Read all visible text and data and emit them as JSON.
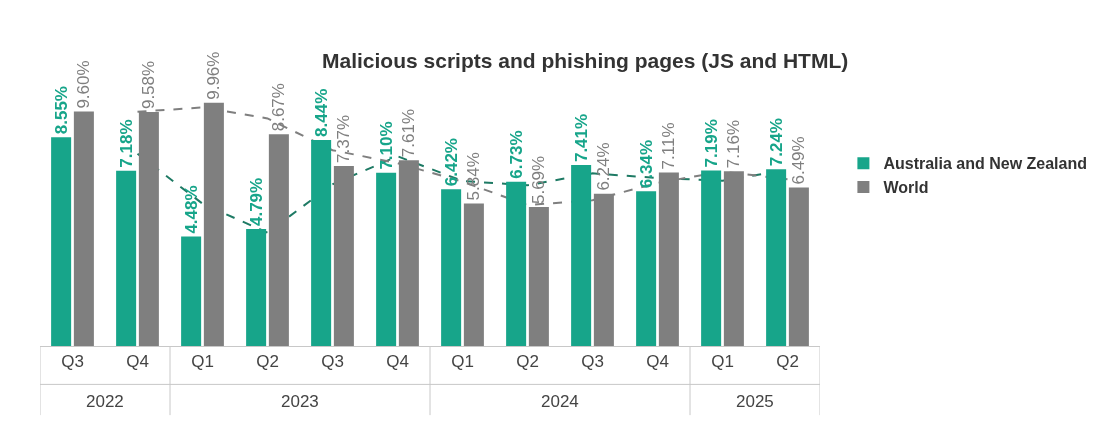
{
  "chart_data": {
    "type": "bar",
    "title": "Malicious scripts and phishing pages (JS and HTML)",
    "categories": [
      "Q3",
      "Q4",
      "Q1",
      "Q2",
      "Q3",
      "Q4",
      "Q1",
      "Q2",
      "Q3",
      "Q4",
      "Q1",
      "Q2"
    ],
    "annotations": [
      "2022",
      "2023",
      "2024",
      "2025"
    ],
    "series": [
      {
        "name": "Australia and New Zealand",
        "color": "#17a58a",
        "values": [
          8.55,
          7.18,
          4.48,
          4.79,
          8.44,
          7.1,
          6.42,
          6.73,
          7.41,
          6.34,
          7.19,
          7.24
        ],
        "value_labels": [
          "8.55%",
          "7.18%",
          "4.48%",
          "4.79%",
          "8.44%",
          "7.10%",
          "6.42%",
          "6.73%",
          "7.41%",
          "6.34%",
          "7.19%",
          "7.24%"
        ]
      },
      {
        "name": "World",
        "color": "#7f7f7f",
        "values": [
          9.6,
          9.58,
          9.96,
          8.67,
          7.37,
          7.61,
          5.84,
          5.69,
          6.24,
          7.11,
          7.16,
          6.49
        ],
        "value_labels": [
          "9.60%",
          "9.58%",
          "9.96%",
          "8.67%",
          "7.37%",
          "7.61%",
          "5.84%",
          "5.69%",
          "6.24%",
          "7.11%",
          "7.16%",
          "6.49%"
        ]
      },
      {
        "type": "line",
        "color": "#1e7a64",
        "line_style": "dashed",
        "values": [
          null,
          7.87,
          5.83,
          4.64,
          6.62,
          7.77,
          6.76,
          6.58,
          7.07,
          6.88,
          6.77,
          7.22
        ]
      },
      {
        "type": "line",
        "color": "#7f7f7f",
        "line_style": "dashed",
        "values": [
          null,
          9.59,
          9.77,
          9.32,
          8.02,
          7.49,
          6.73,
          5.77,
          5.97,
          6.68,
          7.14,
          6.83
        ]
      }
    ],
    "tick_labels": "x",
    "legend": "right"
  }
}
